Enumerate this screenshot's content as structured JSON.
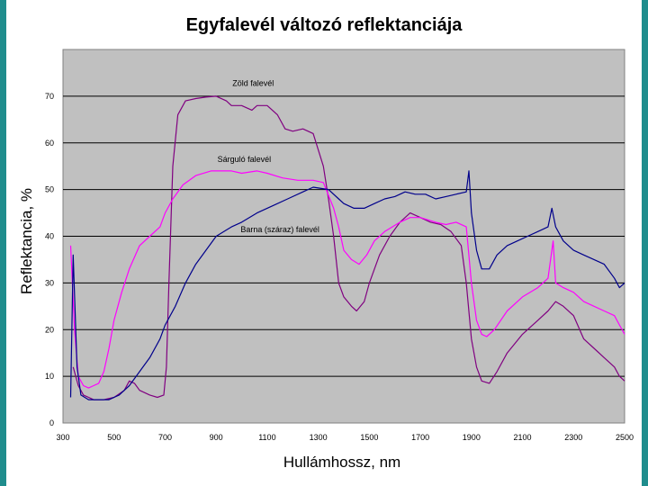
{
  "chart_data": {
    "type": "line",
    "title": "Egyfalevél változó reflektanciája",
    "xlabel": "Hullámhossz, nm",
    "ylabel": "Reflektancia, %",
    "xlim": [
      300,
      2500
    ],
    "ylim": [
      0,
      80
    ],
    "x_ticks": [
      300,
      500,
      700,
      900,
      1100,
      1300,
      1500,
      1700,
      1900,
      2100,
      2300,
      2500
    ],
    "y_ticks": [
      0,
      10,
      20,
      30,
      40,
      50,
      60,
      70
    ],
    "grid": true,
    "background": "#c0c0c0",
    "series": [
      {
        "name": "Zöld falevél",
        "color": "#800080",
        "points": [
          [
            340,
            12
          ],
          [
            360,
            8
          ],
          [
            380,
            6
          ],
          [
            420,
            5
          ],
          [
            460,
            5
          ],
          [
            500,
            5.5
          ],
          [
            540,
            7
          ],
          [
            560,
            9
          ],
          [
            580,
            8.5
          ],
          [
            600,
            7
          ],
          [
            640,
            6
          ],
          [
            670,
            5.5
          ],
          [
            695,
            6
          ],
          [
            705,
            12
          ],
          [
            715,
            30
          ],
          [
            730,
            55
          ],
          [
            750,
            66
          ],
          [
            780,
            69
          ],
          [
            820,
            69.5
          ],
          [
            860,
            69.8
          ],
          [
            900,
            70
          ],
          [
            940,
            69
          ],
          [
            960,
            68
          ],
          [
            1000,
            68
          ],
          [
            1040,
            67
          ],
          [
            1060,
            68
          ],
          [
            1100,
            68
          ],
          [
            1140,
            66
          ],
          [
            1170,
            63
          ],
          [
            1200,
            62.5
          ],
          [
            1240,
            63
          ],
          [
            1280,
            62
          ],
          [
            1320,
            55
          ],
          [
            1340,
            48
          ],
          [
            1360,
            40
          ],
          [
            1380,
            30
          ],
          [
            1400,
            27
          ],
          [
            1430,
            25
          ],
          [
            1450,
            24
          ],
          [
            1480,
            26
          ],
          [
            1500,
            30
          ],
          [
            1540,
            36
          ],
          [
            1580,
            40
          ],
          [
            1620,
            43
          ],
          [
            1660,
            45
          ],
          [
            1700,
            44
          ],
          [
            1740,
            43
          ],
          [
            1780,
            42.5
          ],
          [
            1820,
            41
          ],
          [
            1860,
            38
          ],
          [
            1880,
            30
          ],
          [
            1900,
            18
          ],
          [
            1920,
            12
          ],
          [
            1940,
            9
          ],
          [
            1970,
            8.5
          ],
          [
            2000,
            11
          ],
          [
            2040,
            15
          ],
          [
            2100,
            19
          ],
          [
            2160,
            22
          ],
          [
            2200,
            24
          ],
          [
            2230,
            26
          ],
          [
            2260,
            25
          ],
          [
            2300,
            23
          ],
          [
            2340,
            18
          ],
          [
            2380,
            16
          ],
          [
            2420,
            14
          ],
          [
            2460,
            12
          ],
          [
            2480,
            10
          ],
          [
            2500,
            9
          ]
        ]
      },
      {
        "name": "Sárguló falevél",
        "color": "#ff00ff",
        "points": [
          [
            330,
            38
          ],
          [
            345,
            20
          ],
          [
            360,
            10
          ],
          [
            380,
            8
          ],
          [
            400,
            7.5
          ],
          [
            420,
            8
          ],
          [
            440,
            8.5
          ],
          [
            460,
            11
          ],
          [
            480,
            16
          ],
          [
            500,
            22
          ],
          [
            530,
            28
          ],
          [
            560,
            33
          ],
          [
            600,
            38
          ],
          [
            640,
            40
          ],
          [
            680,
            42
          ],
          [
            700,
            45
          ],
          [
            730,
            48
          ],
          [
            770,
            51
          ],
          [
            820,
            53
          ],
          [
            880,
            54
          ],
          [
            960,
            54
          ],
          [
            1000,
            53.5
          ],
          [
            1060,
            54
          ],
          [
            1100,
            53.5
          ],
          [
            1160,
            52.5
          ],
          [
            1220,
            52
          ],
          [
            1280,
            52
          ],
          [
            1320,
            51.5
          ],
          [
            1360,
            46
          ],
          [
            1380,
            42
          ],
          [
            1400,
            37
          ],
          [
            1430,
            35
          ],
          [
            1460,
            34
          ],
          [
            1490,
            36
          ],
          [
            1520,
            39
          ],
          [
            1560,
            41
          ],
          [
            1620,
            43
          ],
          [
            1660,
            44
          ],
          [
            1700,
            44
          ],
          [
            1760,
            43
          ],
          [
            1800,
            42.5
          ],
          [
            1840,
            43
          ],
          [
            1880,
            42
          ],
          [
            1900,
            30
          ],
          [
            1920,
            22
          ],
          [
            1940,
            19
          ],
          [
            1960,
            18.5
          ],
          [
            1990,
            20
          ],
          [
            2040,
            24
          ],
          [
            2100,
            27
          ],
          [
            2160,
            29
          ],
          [
            2200,
            31
          ],
          [
            2220,
            39
          ],
          [
            2230,
            30
          ],
          [
            2260,
            29
          ],
          [
            2300,
            28
          ],
          [
            2340,
            26
          ],
          [
            2380,
            25
          ],
          [
            2420,
            24
          ],
          [
            2460,
            23
          ],
          [
            2480,
            21
          ],
          [
            2500,
            19
          ]
        ]
      },
      {
        "name": "Barna (száraz) falevél",
        "color": "#00008b",
        "points": [
          [
            330,
            5.5
          ],
          [
            340,
            36
          ],
          [
            355,
            12
          ],
          [
            370,
            6
          ],
          [
            400,
            5
          ],
          [
            440,
            5
          ],
          [
            480,
            5
          ],
          [
            520,
            6
          ],
          [
            560,
            8
          ],
          [
            600,
            11
          ],
          [
            640,
            14
          ],
          [
            680,
            18
          ],
          [
            700,
            21
          ],
          [
            740,
            25
          ],
          [
            780,
            30
          ],
          [
            820,
            34
          ],
          [
            860,
            37
          ],
          [
            900,
            40
          ],
          [
            960,
            42
          ],
          [
            1000,
            43
          ],
          [
            1060,
            45
          ],
          [
            1120,
            46.5
          ],
          [
            1180,
            48
          ],
          [
            1240,
            49.5
          ],
          [
            1280,
            50.5
          ],
          [
            1340,
            50
          ],
          [
            1380,
            48
          ],
          [
            1400,
            47
          ],
          [
            1440,
            46
          ],
          [
            1480,
            46
          ],
          [
            1520,
            47
          ],
          [
            1560,
            48
          ],
          [
            1600,
            48.5
          ],
          [
            1640,
            49.5
          ],
          [
            1680,
            49
          ],
          [
            1720,
            49
          ],
          [
            1760,
            48
          ],
          [
            1800,
            48.5
          ],
          [
            1840,
            49
          ],
          [
            1880,
            49.5
          ],
          [
            1890,
            54
          ],
          [
            1900,
            45
          ],
          [
            1920,
            37
          ],
          [
            1940,
            33
          ],
          [
            1970,
            33
          ],
          [
            2000,
            36
          ],
          [
            2040,
            38
          ],
          [
            2080,
            39
          ],
          [
            2120,
            40
          ],
          [
            2160,
            41
          ],
          [
            2200,
            42
          ],
          [
            2215,
            46
          ],
          [
            2230,
            42
          ],
          [
            2260,
            39
          ],
          [
            2300,
            37
          ],
          [
            2340,
            36
          ],
          [
            2380,
            35
          ],
          [
            2420,
            34
          ],
          [
            2460,
            31
          ],
          [
            2480,
            29
          ],
          [
            2500,
            30
          ]
        ]
      }
    ],
    "annotations": [
      {
        "text": "Zöld falevél",
        "x": 1045,
        "y": 72.2
      },
      {
        "text": "Sárguló falevél",
        "x": 1010,
        "y": 55.9
      },
      {
        "text": "Barna (száraz) falevél",
        "x": 1150,
        "y": 40.9
      }
    ]
  }
}
